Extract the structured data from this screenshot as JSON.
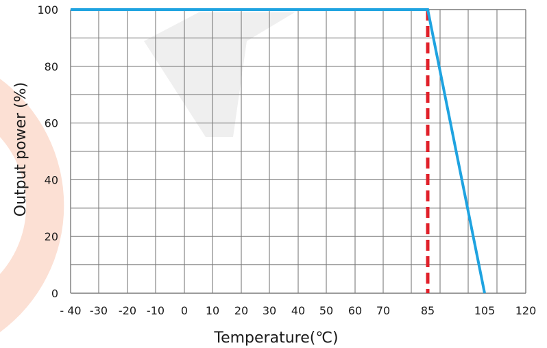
{
  "chart_data": {
    "type": "line",
    "title": "",
    "xlabel": "Temperature(℃)",
    "ylabel": "Output power (%)",
    "x_ticks": [
      {
        "value": -40,
        "label": "- 40"
      },
      {
        "value": -30,
        "label": "-30"
      },
      {
        "value": -20,
        "label": "-20"
      },
      {
        "value": -10,
        "label": "-10"
      },
      {
        "value": 0,
        "label": "0"
      },
      {
        "value": 10,
        "label": "10"
      },
      {
        "value": 20,
        "label": "20"
      },
      {
        "value": 30,
        "label": "30"
      },
      {
        "value": 40,
        "label": "40"
      },
      {
        "value": 50,
        "label": "50"
      },
      {
        "value": 60,
        "label": "60"
      },
      {
        "value": 70,
        "label": "70"
      },
      {
        "value": 85,
        "label": "85"
      },
      {
        "value": 105,
        "label": "105"
      },
      {
        "value": 120,
        "label": "120"
      }
    ],
    "y_ticks": [
      {
        "value": 0,
        "label": "0"
      },
      {
        "value": 20,
        "label": "20"
      },
      {
        "value": 40,
        "label": "40"
      },
      {
        "value": 60,
        "label": "60"
      },
      {
        "value": 80,
        "label": "80"
      },
      {
        "value": 100,
        "label": "100"
      }
    ],
    "xlim": [
      -40,
      120
    ],
    "ylim": [
      0,
      100
    ],
    "grid": true,
    "series": [
      {
        "color": "#1fa3e0",
        "points": [
          [
            -40,
            100
          ],
          [
            85,
            100
          ],
          [
            105,
            0
          ]
        ]
      }
    ],
    "reference_lines": [
      {
        "x": 85,
        "color": "#e0202a",
        "style": "dashed"
      }
    ],
    "colors": {
      "grid": "#7a7a7a",
      "series": "#1fa3e0",
      "reference": "#e0202a"
    }
  }
}
